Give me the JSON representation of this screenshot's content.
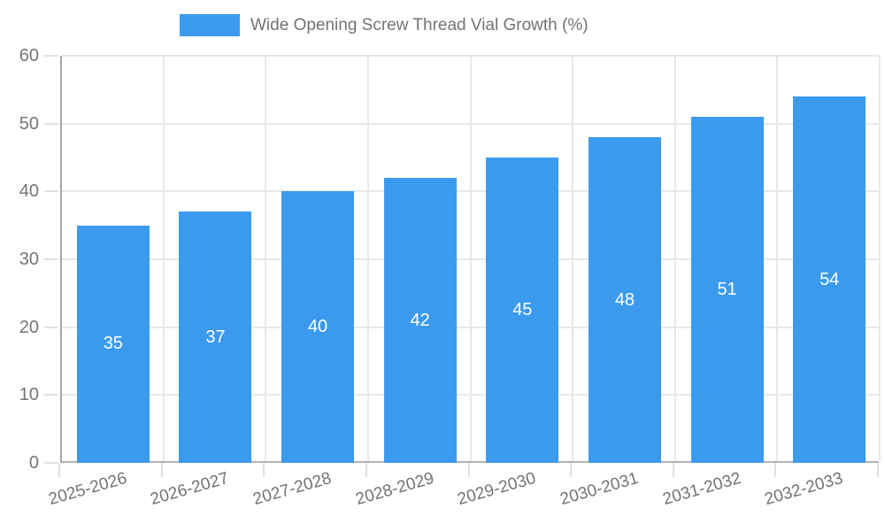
{
  "chart_data": {
    "type": "bar",
    "title": "Wide Opening Screw Thread Vial Growth (%)",
    "categories": [
      "2025-2026",
      "2026-2027",
      "2027-2028",
      "2028-2029",
      "2029-2030",
      "2030-2031",
      "2031-2032",
      "2032-2033"
    ],
    "values": [
      35,
      37,
      40,
      42,
      45,
      48,
      51,
      54
    ],
    "xlabel": "",
    "ylabel": "",
    "ylim": [
      0,
      60
    ],
    "yticks": [
      0,
      10,
      20,
      30,
      40,
      50,
      60
    ],
    "grid": true,
    "legend_position": "top",
    "bar_color": "#3b9aee",
    "bar_label_color": "#ffffff",
    "axis_text_color": "#757575",
    "gridline_color": "#e8e8e8"
  },
  "legend": {
    "series_label": "Wide Opening Screw Thread Vial Growth (%)"
  }
}
